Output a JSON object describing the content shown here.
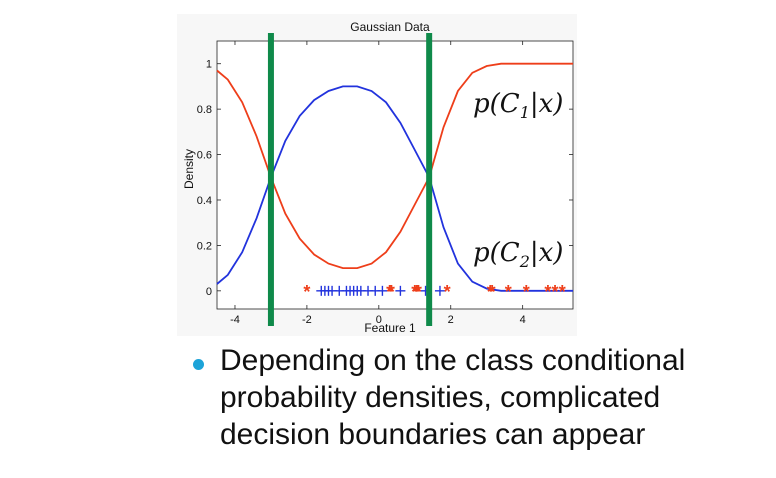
{
  "chart_data": {
    "type": "line",
    "title": "Gaussian Data",
    "xlabel": "Feature 1",
    "ylabel": "Density",
    "xlim": [
      -4.5,
      5.4
    ],
    "ylim": [
      -0.08,
      1.1
    ],
    "xticks": [
      -4,
      -2,
      0,
      2,
      4
    ],
    "yticks": [
      0,
      0.2,
      0.4,
      0.6,
      0.8,
      1
    ],
    "grid": false,
    "series": [
      {
        "name": "p(C1|x)",
        "color": "#ee3e1a",
        "x": [
          -4.5,
          -4.2,
          -3.8,
          -3.4,
          -3.0,
          -2.6,
          -2.2,
          -1.8,
          -1.4,
          -1.0,
          -0.6,
          -0.2,
          0.2,
          0.6,
          1.0,
          1.4,
          1.8,
          2.2,
          2.6,
          3.0,
          3.4,
          3.8,
          4.2,
          4.6,
          5.0,
          5.4
        ],
        "y": [
          0.97,
          0.93,
          0.83,
          0.68,
          0.5,
          0.34,
          0.23,
          0.16,
          0.12,
          0.1,
          0.1,
          0.12,
          0.17,
          0.26,
          0.38,
          0.5,
          0.72,
          0.88,
          0.96,
          0.99,
          1.0,
          1.0,
          1.0,
          1.0,
          1.0,
          1.0
        ]
      },
      {
        "name": "p(C2|x)",
        "color": "#2233dd",
        "x": [
          -4.5,
          -4.2,
          -3.8,
          -3.4,
          -3.0,
          -2.6,
          -2.2,
          -1.8,
          -1.4,
          -1.0,
          -0.6,
          -0.2,
          0.2,
          0.6,
          1.0,
          1.4,
          1.8,
          2.2,
          2.6,
          3.0,
          3.4,
          3.8,
          4.2,
          4.6,
          5.0,
          5.4
        ],
        "y": [
          0.03,
          0.07,
          0.17,
          0.32,
          0.5,
          0.66,
          0.77,
          0.84,
          0.88,
          0.9,
          0.9,
          0.88,
          0.83,
          0.74,
          0.62,
          0.5,
          0.28,
          0.12,
          0.04,
          0.01,
          0.0,
          0.0,
          0.0,
          0.0,
          0.0,
          0.0
        ]
      }
    ],
    "decision_boundaries": {
      "x": [
        -3.0,
        1.4
      ],
      "color": "#0f8a4a"
    },
    "class1_samples": {
      "marker": "*",
      "color": "#ee3e1a",
      "x": [
        -2.0,
        0.3,
        0.35,
        1.0,
        1.05,
        1.1,
        1.9,
        3.1,
        3.15,
        3.6,
        4.1,
        4.7,
        4.9,
        5.1
      ]
    },
    "class2_samples": {
      "marker": "+",
      "color": "#2233dd",
      "x": [
        -1.6,
        -1.5,
        -1.4,
        -1.3,
        -1.1,
        -0.9,
        -0.8,
        -0.7,
        -0.6,
        -0.5,
        -0.3,
        -0.1,
        0.1,
        0.6,
        1.3,
        1.7
      ]
    },
    "annotations": [
      {
        "text": "p(C1|x)",
        "x": 4.1,
        "y": 0.81
      },
      {
        "text": "p(C2|x)",
        "x": 4.1,
        "y": 0.14
      }
    ]
  },
  "labels": {
    "p_c1_base": "p(C",
    "p_c1_sub": "1",
    "p_c1_tail": "|x)",
    "p_c2_base": "p(C",
    "p_c2_sub": "2",
    "p_c2_tail": "|x)"
  },
  "bullet": {
    "text": "Depending on the class conditional probability densities, complicated decision boundaries can appear",
    "dot_color": "#1ca3d8"
  }
}
